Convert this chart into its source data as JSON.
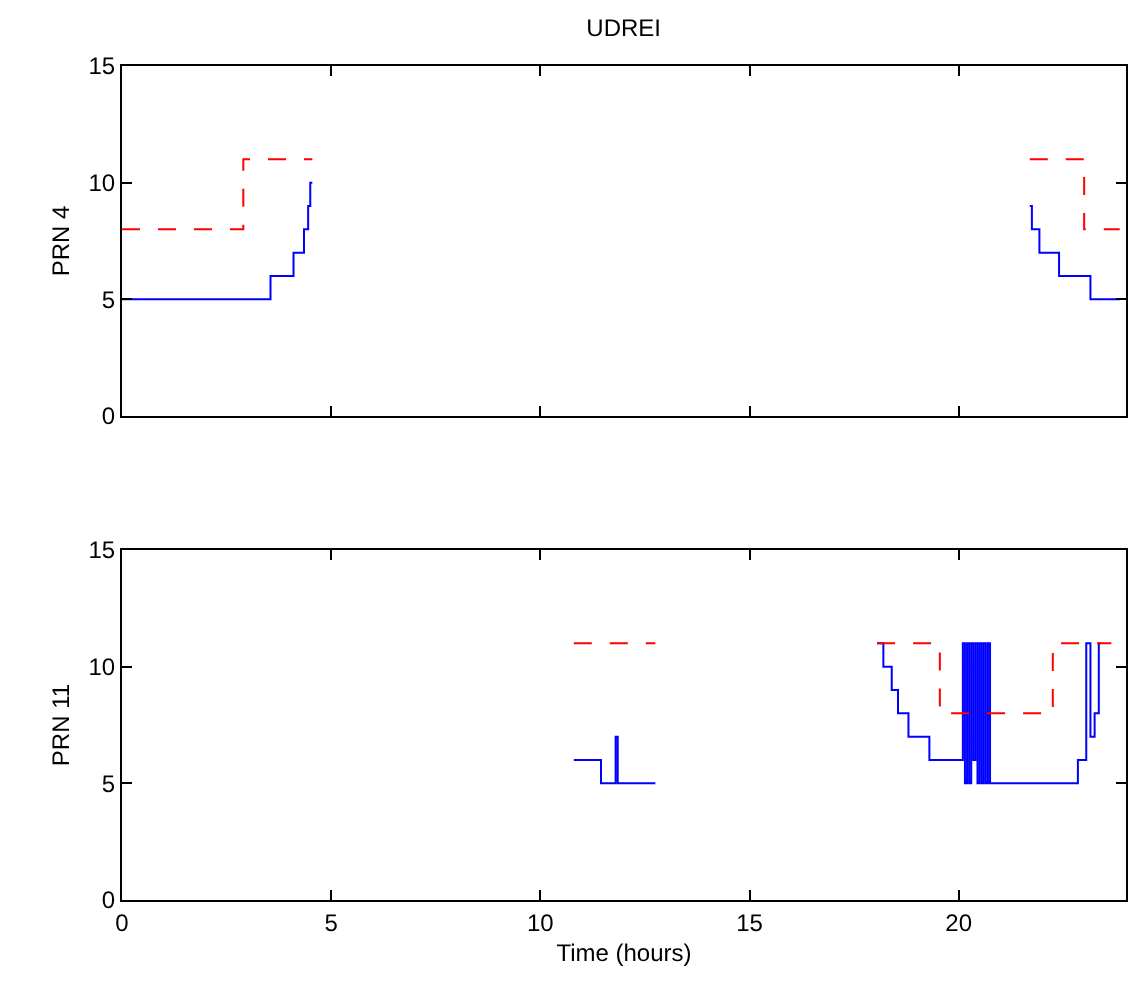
{
  "chart_data": [
    {
      "type": "step",
      "title": "UDREI",
      "ylabel": "PRN 4",
      "xlim": [
        0,
        24
      ],
      "xticks": [
        {
          "value": 0,
          "label": null
        },
        {
          "value": 5,
          "label": null
        },
        {
          "value": 10,
          "label": null
        },
        {
          "value": 15,
          "label": null
        },
        {
          "value": 20,
          "label": null
        }
      ],
      "ylim": [
        0,
        15
      ],
      "yticks": [
        0,
        5,
        10,
        15
      ],
      "tick_labels": "y",
      "grid": false,
      "marker": "none",
      "series": [
        {
          "color": "#0000ff",
          "line_style": "solid",
          "x": [
            0,
            3.55,
            4.1,
            4.35,
            4.45,
            4.5,
            4.55,
            4.6,
            21.7,
            21.75,
            21.93,
            22.4,
            23.15,
            23.85
          ],
          "values": [
            5,
            6,
            7,
            8,
            9,
            10,
            10,
            null,
            9,
            8,
            7,
            6,
            5,
            5
          ]
        },
        {
          "color": "#ff0000",
          "line_style": "dashed",
          "x": [
            0,
            2.9,
            4.55,
            4.6,
            21.7,
            23.0,
            23.85
          ],
          "values": [
            8,
            11,
            11,
            null,
            11,
            8,
            8
          ]
        }
      ]
    },
    {
      "type": "step",
      "ylabel": "PRN 11",
      "xlabel": "Time (hours)",
      "xlim": [
        0,
        24
      ],
      "xticks": [
        0,
        5,
        10,
        15,
        20
      ],
      "ylim": [
        0,
        15
      ],
      "yticks": [
        0,
        5,
        10,
        15
      ],
      "grid": false,
      "marker": "none",
      "series": [
        {
          "color": "#0000ff",
          "line_style": "solid",
          "x": [
            10.8,
            11.45,
            11.8,
            11.85,
            12.75,
            12.8,
            18.05,
            18.2,
            18.4,
            18.55,
            18.8,
            19.3,
            20.1,
            20.15,
            20.2,
            20.25,
            20.3,
            20.35,
            20.4,
            20.45,
            20.5,
            20.55,
            20.6,
            20.65,
            20.7,
            20.75,
            20.8,
            22.85,
            23.05,
            23.15,
            23.25,
            23.35,
            23.4
          ],
          "values": [
            6,
            5,
            7,
            5,
            5,
            null,
            11,
            10,
            9,
            8,
            7,
            6,
            11,
            5,
            11,
            5,
            11,
            6,
            11,
            5,
            11,
            5,
            11,
            5,
            11,
            5,
            5,
            6,
            11,
            7,
            8,
            11,
            11
          ]
        },
        {
          "color": "#ff0000",
          "line_style": "dashed",
          "x": [
            10.8,
            12.75,
            12.8,
            18.05,
            19.55,
            22.25,
            23.65
          ],
          "values": [
            11,
            11,
            null,
            11,
            8,
            11,
            11
          ]
        }
      ]
    }
  ]
}
